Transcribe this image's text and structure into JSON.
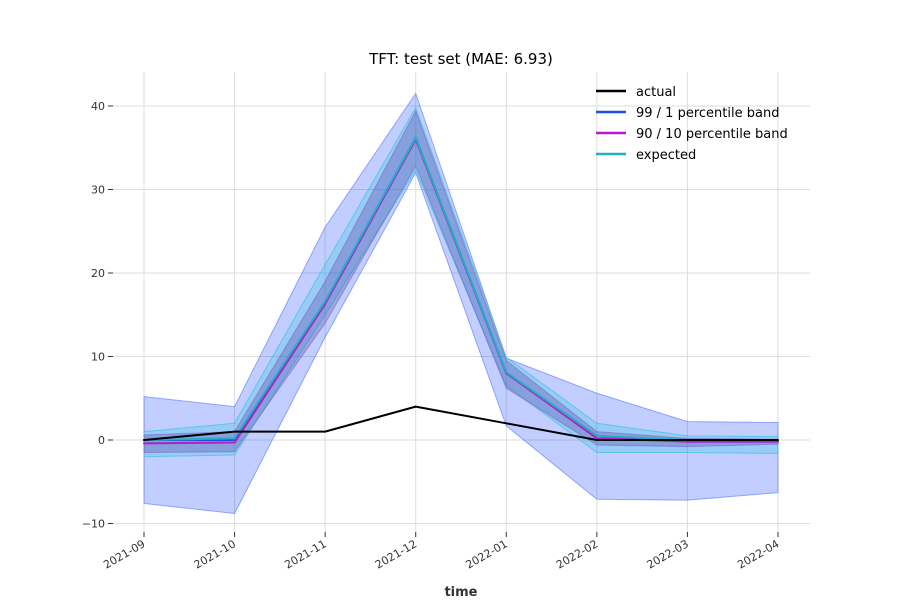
{
  "chart_data": {
    "type": "line",
    "title": "TFT: test set (MAE: 6.93)",
    "xlabel": "time",
    "ylabel": "",
    "x": [
      "2021-09",
      "2021-10",
      "2021-11",
      "2021-12",
      "2022-01",
      "2022-02",
      "2022-03",
      "2022-04"
    ],
    "ylim": [
      -11,
      44
    ],
    "yticks": [
      -10,
      0,
      10,
      20,
      30,
      40
    ],
    "ytick_labels": [
      "−10",
      "0",
      "10",
      "20",
      "30",
      "40"
    ],
    "grid": true,
    "legend_position": "top-right",
    "series": [
      {
        "name": "actual",
        "color": "#000000",
        "values": [
          0,
          1,
          1,
          4,
          2,
          0,
          0,
          0
        ]
      },
      {
        "name": "99 / 1 percentile band",
        "color": "#1f4fe0",
        "values": [
          0,
          0,
          16.5,
          36.2,
          8,
          0.5,
          -0.2,
          -0.2
        ],
        "band_low": [
          -7.6,
          -8.8,
          12.3,
          32.0,
          1.7,
          -7.1,
          -7.2,
          -6.3
        ],
        "band_high": [
          5.2,
          4.0,
          25.5,
          41.5,
          9.8,
          5.6,
          2.2,
          2.1
        ]
      },
      {
        "name": "90 / 10 percentile band",
        "color": "#b61cc8",
        "values": [
          -0.4,
          -0.3,
          16.3,
          36.0,
          8.0,
          0.2,
          -0.2,
          -0.2
        ],
        "band_low": [
          -1.5,
          -1.4,
          14.0,
          32.8,
          6.2,
          -0.6,
          -0.8,
          -0.5
        ],
        "band_high": [
          0.6,
          1.0,
          19.0,
          39.4,
          9.5,
          1.0,
          0.2,
          0.1
        ]
      },
      {
        "name": "expected",
        "color": "#1fb0c4",
        "values": [
          0,
          0.2,
          16.6,
          36.2,
          8.1,
          0.5,
          0,
          0
        ],
        "band_low": [
          -2.0,
          -1.8,
          15.0,
          32.3,
          6.5,
          -1.5,
          -1.5,
          -1.6
        ],
        "band_high": [
          1.0,
          2.0,
          21.0,
          39.8,
          9.9,
          2.0,
          0.5,
          0.4
        ]
      }
    ]
  }
}
